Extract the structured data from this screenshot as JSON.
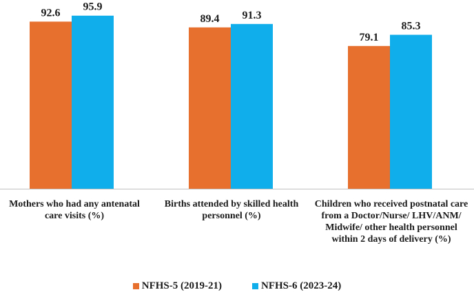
{
  "chart_data": {
    "type": "bar",
    "title": "",
    "xlabel": "",
    "ylabel": "",
    "ylim": [
      0,
      100
    ],
    "grid": false,
    "legend_position": "bottom",
    "categories": [
      "Mothers who had any antenatal care visits (%)",
      "Births attended by skilled health personnel (%)",
      "Children who received postnatal care from a Doctor/Nurse/ LHV/ANM/ Midwife/ other health personnel within 2 days of delivery (%)"
    ],
    "series": [
      {
        "name": "NFHS-5  (2019-21)",
        "color": "#E8702F",
        "values": [
          92.6,
          89.4,
          79.1
        ]
      },
      {
        "name": "NFHS-6  (2023-24)",
        "color": "#10AEEB",
        "values": [
          95.9,
          91.3,
          85.3
        ]
      }
    ]
  }
}
